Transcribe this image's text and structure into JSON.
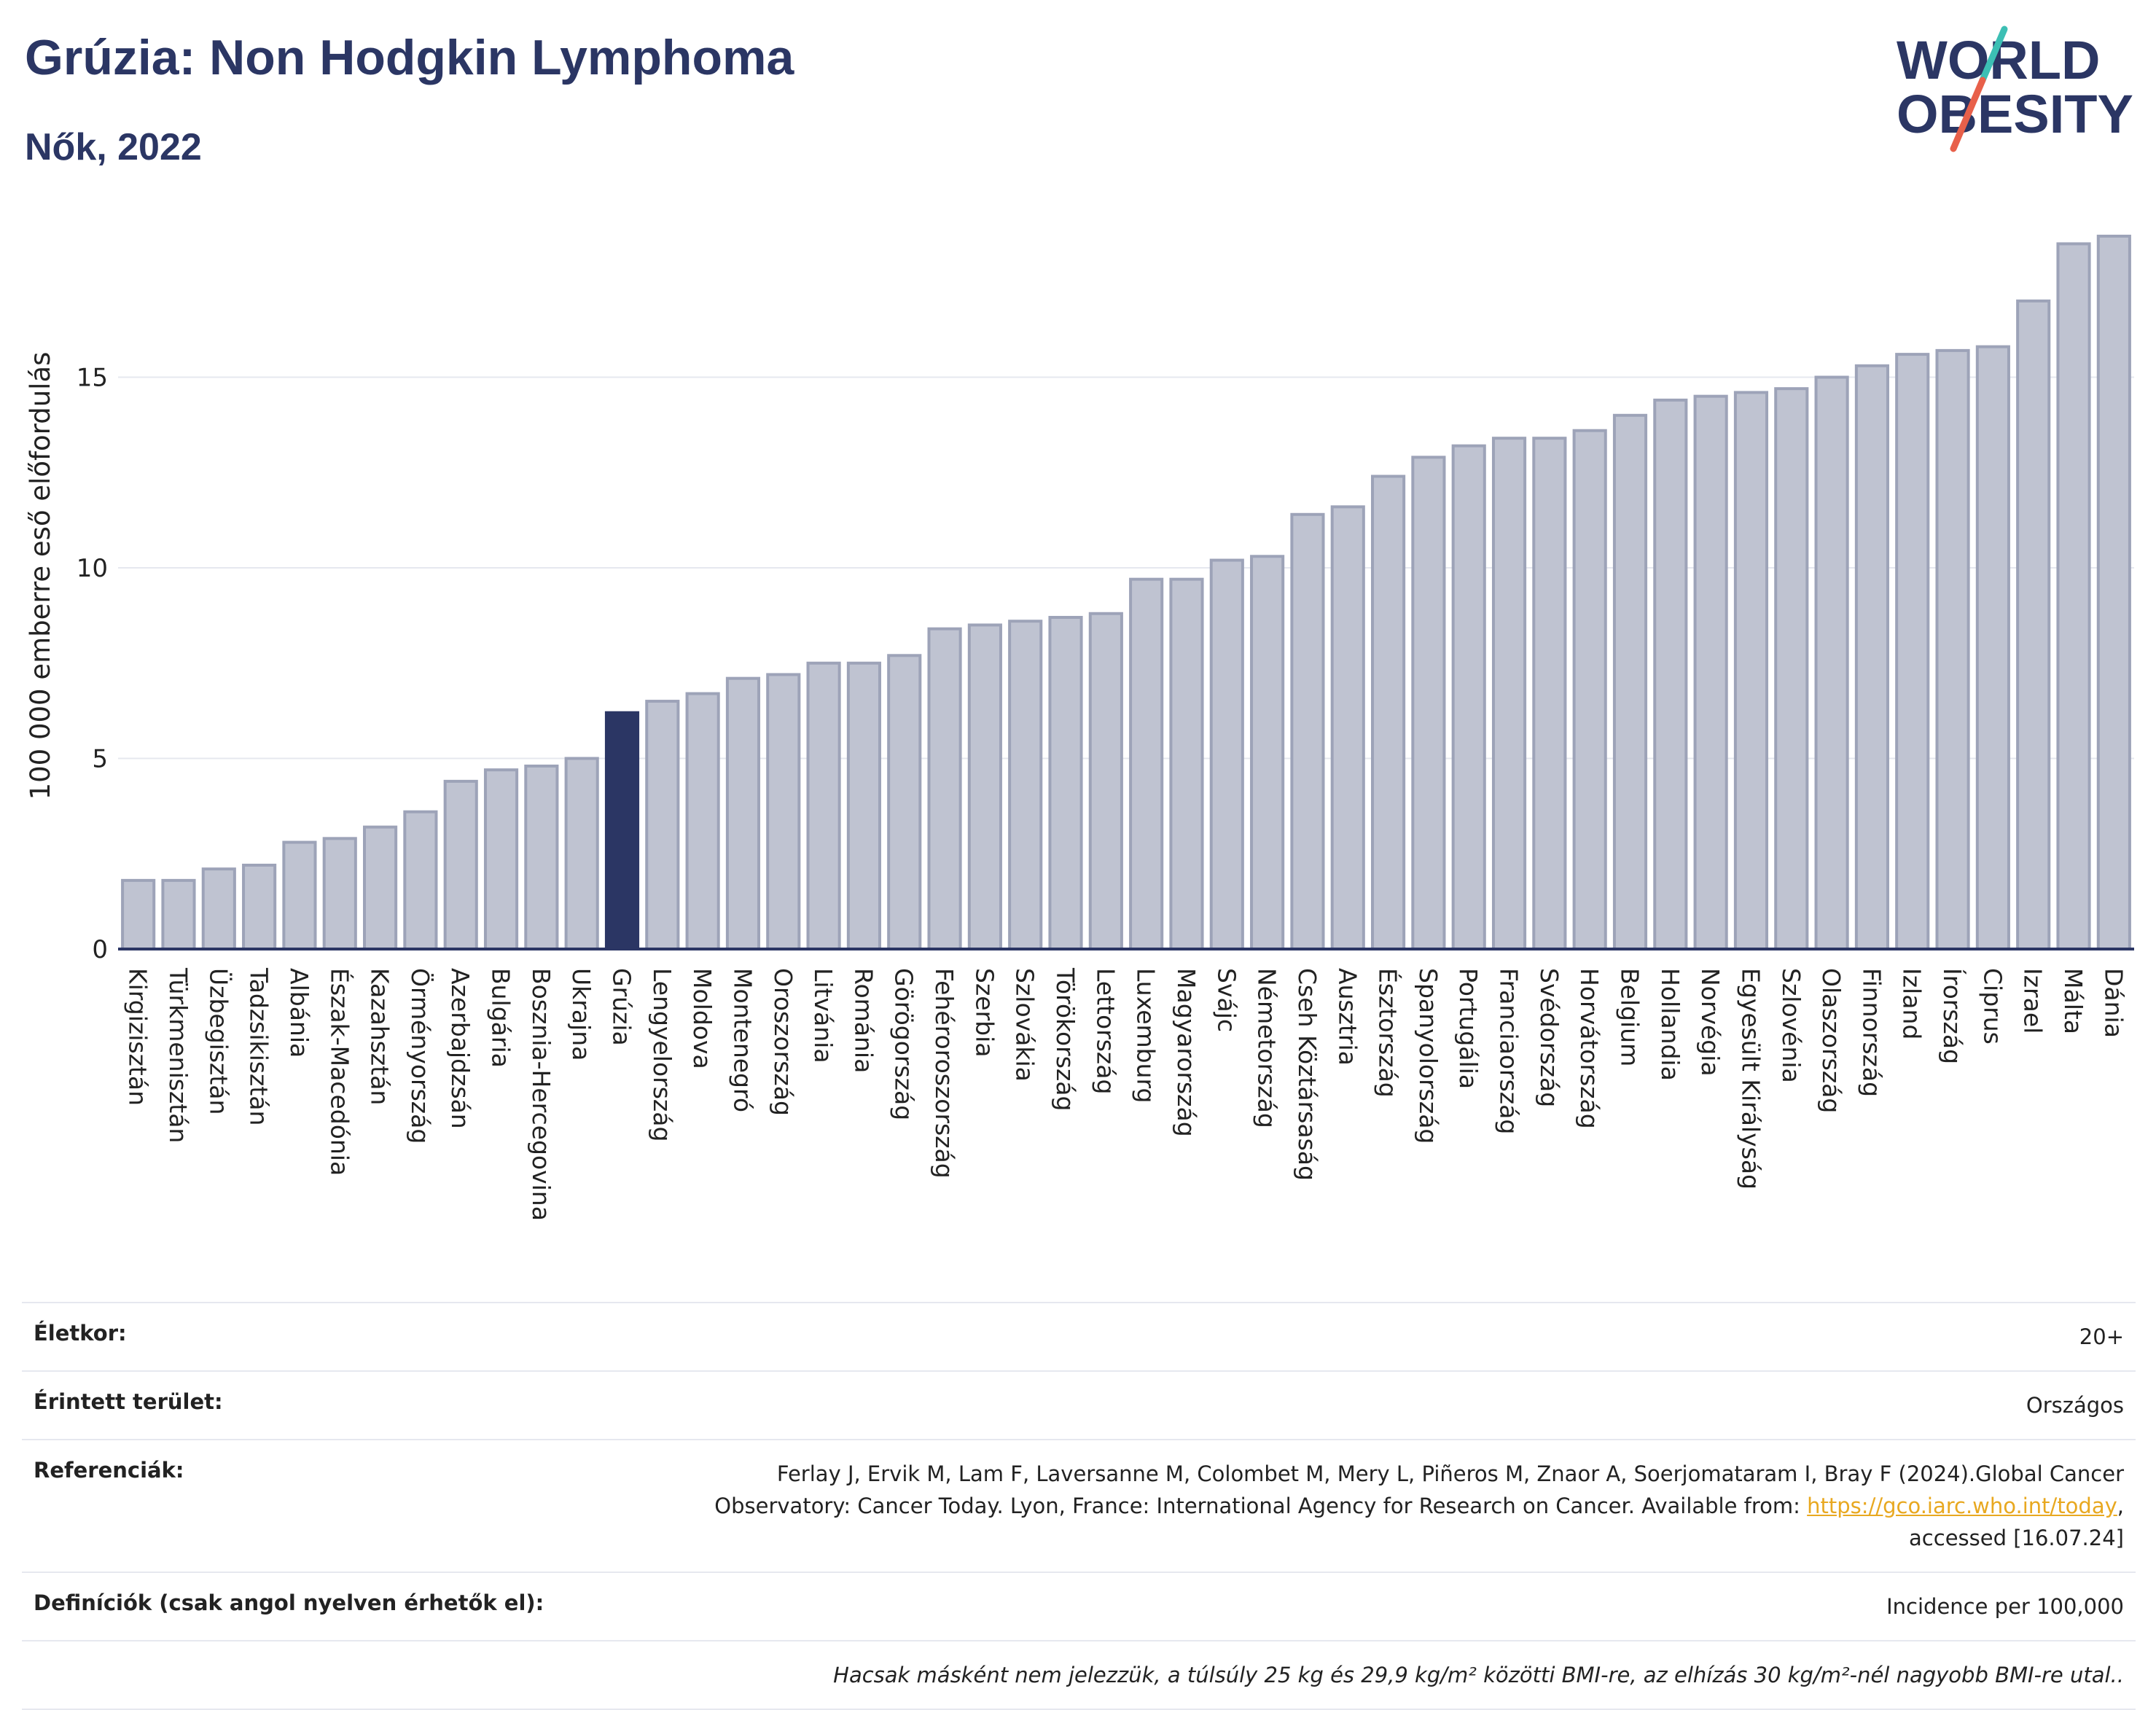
{
  "header": {
    "title": "Grúzia: Non Hodgkin Lymphoma",
    "subtitle": "Nők, 2022"
  },
  "logo": {
    "line1": "WORLD",
    "line2": "OBESITY",
    "icon": "world-obesity-logo"
  },
  "colors": {
    "highlight": "#2b3664",
    "bar": "#bfc3d1",
    "bar_stroke": "#9da3b8",
    "accent_teal": "#3cbfb4",
    "accent_red": "#e8604a"
  },
  "chart_data": {
    "type": "bar",
    "ylabel": "100 000 emberre eső előfordulás",
    "xlabel": "",
    "ylim": [
      0,
      19
    ],
    "yticks": [
      0,
      5,
      10,
      15
    ],
    "grid": true,
    "highlight": "Grúzia",
    "categories": [
      "Kirgizisztán",
      "Türkmenisztán",
      "Üzbegisztán",
      "Tadzsikisztán",
      "Albánia",
      "Észak-Macedónia",
      "Kazahsztán",
      "Örményország",
      "Azerbajdzsán",
      "Bulgária",
      "Bosznia-Hercegovina",
      "Ukrajna",
      "Grúzia",
      "Lengyelország",
      "Moldova",
      "Montenegró",
      "Oroszország",
      "Litvánia",
      "Románia",
      "Görögország",
      "Fehéroroszország",
      "Szerbia",
      "Szlovákia",
      "Törökország",
      "Lettország",
      "Luxemburg",
      "Magyarország",
      "Svájc",
      "Németország",
      "Cseh Köztársaság",
      "Ausztria",
      "Észtország",
      "Spanyolország",
      "Portugália",
      "Franciaország",
      "Svédország",
      "Horvátország",
      "Belgium",
      "Hollandia",
      "Norvégia",
      "Egyesült Királyság",
      "Szlovénia",
      "Olaszország",
      "Finnország",
      "Izland",
      "Írország",
      "Ciprus",
      "Izrael",
      "Málta",
      "Dánia"
    ],
    "values": [
      1.8,
      1.8,
      2.1,
      2.2,
      2.8,
      2.9,
      3.2,
      3.6,
      4.4,
      4.7,
      4.8,
      5.0,
      6.2,
      6.5,
      6.7,
      7.1,
      7.2,
      7.5,
      7.5,
      7.7,
      8.4,
      8.5,
      8.6,
      8.7,
      8.8,
      9.7,
      9.7,
      10.2,
      10.3,
      11.4,
      11.6,
      12.4,
      12.9,
      13.2,
      13.4,
      13.4,
      13.6,
      14.0,
      14.4,
      14.5,
      14.6,
      14.7,
      15.0,
      15.3,
      15.6,
      15.7,
      15.8,
      17.0,
      18.5,
      18.7
    ]
  },
  "info": {
    "age_label": "Életkor:",
    "age_value": "20+",
    "area_label": "Érintett terület:",
    "area_value": "Országos",
    "refs_label": "Referenciák:",
    "refs_text_1": "Ferlay J, Ervik M, Lam F, Laversanne M, Colombet M, Mery L, Piñeros M, Znaor A, Soerjomataram I, Bray F (2024).Global Cancer",
    "refs_text_2": "Observatory: Cancer Today. Lyon, France: International Agency for Research on Cancer. Available from: ",
    "refs_link": "https://gco.iarc.who.int/today",
    "refs_text_3": ",",
    "refs_text_4": "accessed [16.07.24]",
    "defs_label": "Definíciók (csak angol nyelven érhetők el):",
    "defs_value": "Incidence per 100,000",
    "note": "Hacsak másként nem jelezzük, a túlsúly 25 kg és 29,9 kg/m² közötti BMI-re, az elhízás 30 kg/m²-nél nagyobb BMI-re utal.."
  }
}
